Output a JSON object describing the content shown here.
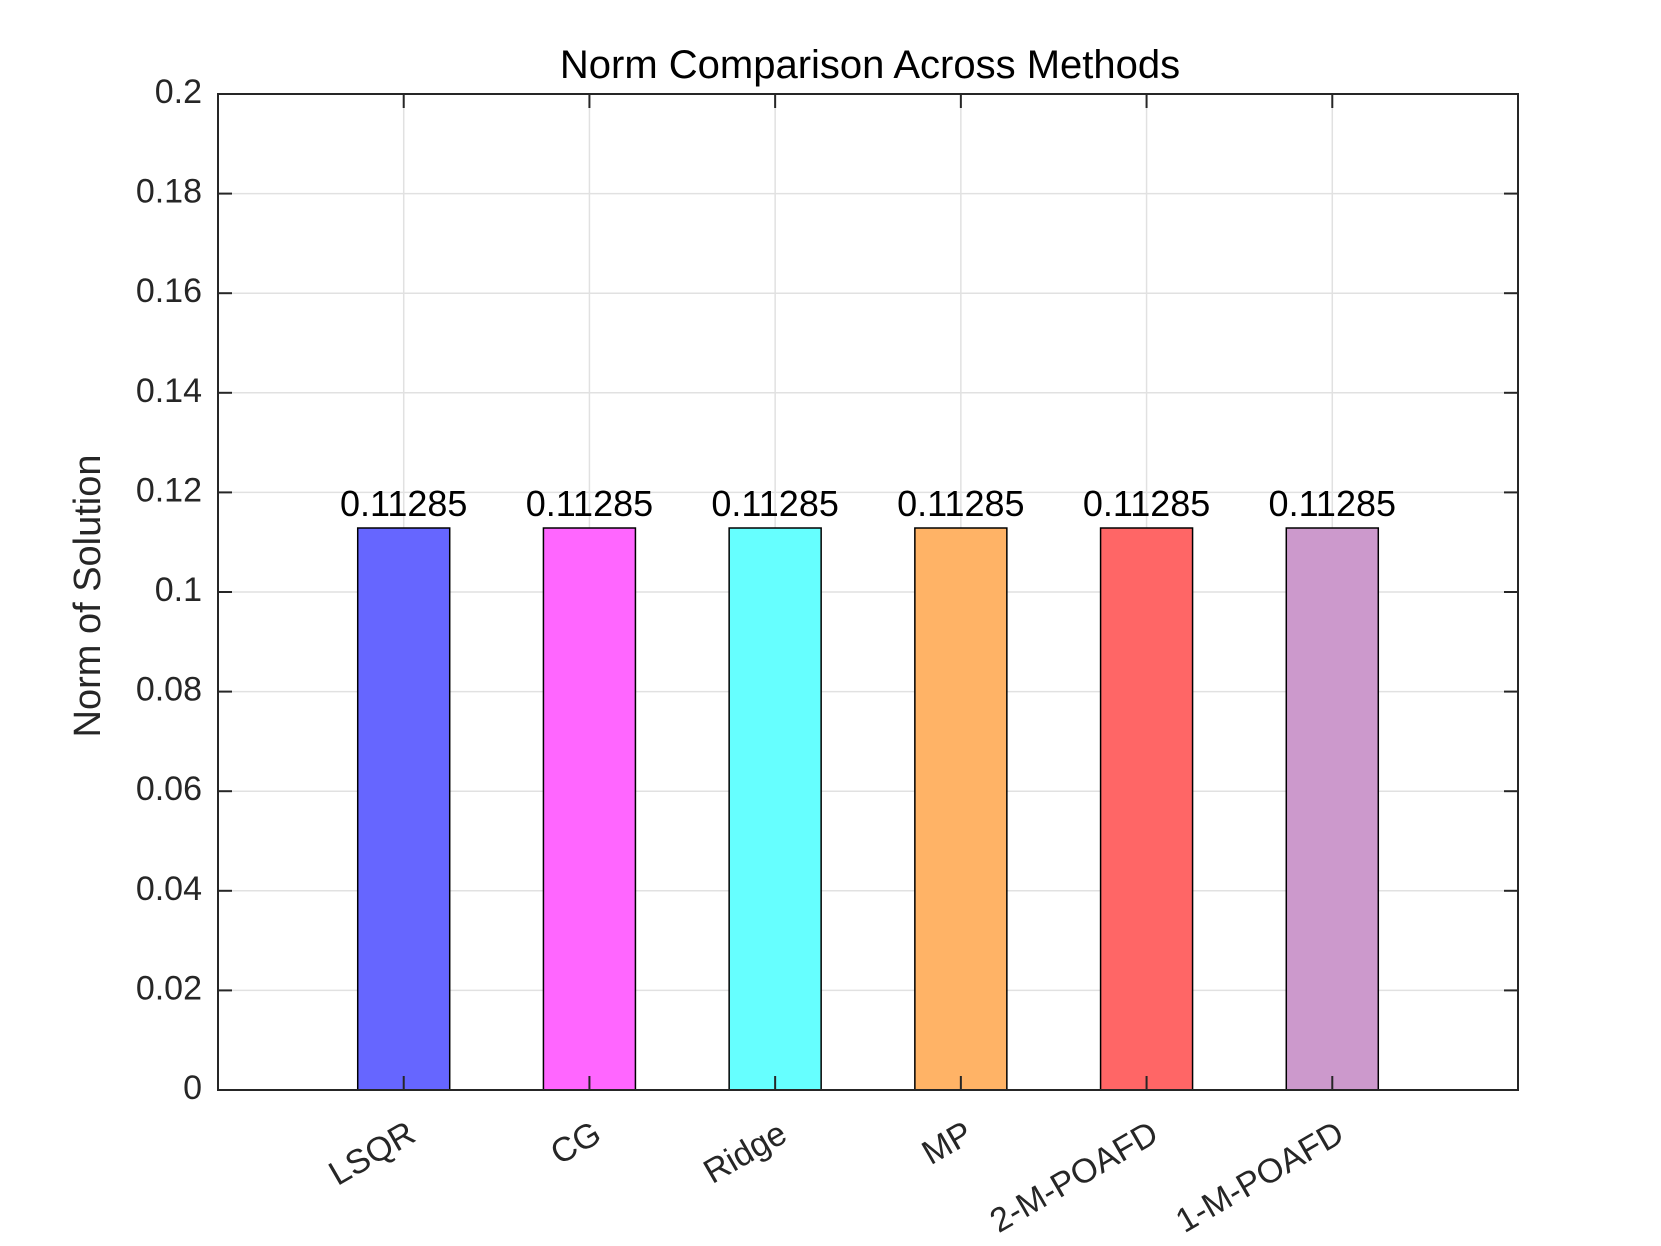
{
  "chart_data": {
    "type": "bar",
    "title": "Norm Comparison Across Methods",
    "xlabel": "",
    "ylabel": "Norm of Solution",
    "categories": [
      "LSQR",
      "CG",
      "Ridge",
      "MP",
      "2-M-POAFD",
      "1-M-POAFD"
    ],
    "values": [
      0.11285,
      0.11285,
      0.11285,
      0.11285,
      0.11285,
      0.11285
    ],
    "data_labels": [
      "0.11285",
      "0.11285",
      "0.11285",
      "0.11285",
      "0.11285",
      "0.11285"
    ],
    "colors": [
      "#6666ff",
      "#ff66ff",
      "#66ffff",
      "#ffb366",
      "#ff6666",
      "#cc99cc"
    ],
    "ylim": [
      0,
      0.2
    ],
    "yticks": [
      0,
      0.02,
      0.04,
      0.06,
      0.08,
      0.1,
      0.12,
      0.14,
      0.16,
      0.18,
      0.2
    ],
    "ytick_labels": [
      "0",
      "0.02",
      "0.04",
      "0.06",
      "0.08",
      "0.1",
      "0.12",
      "0.14",
      "0.16",
      "0.18",
      "0.2"
    ],
    "xlim": [
      0,
      7
    ],
    "grid": true,
    "legend": "none"
  }
}
